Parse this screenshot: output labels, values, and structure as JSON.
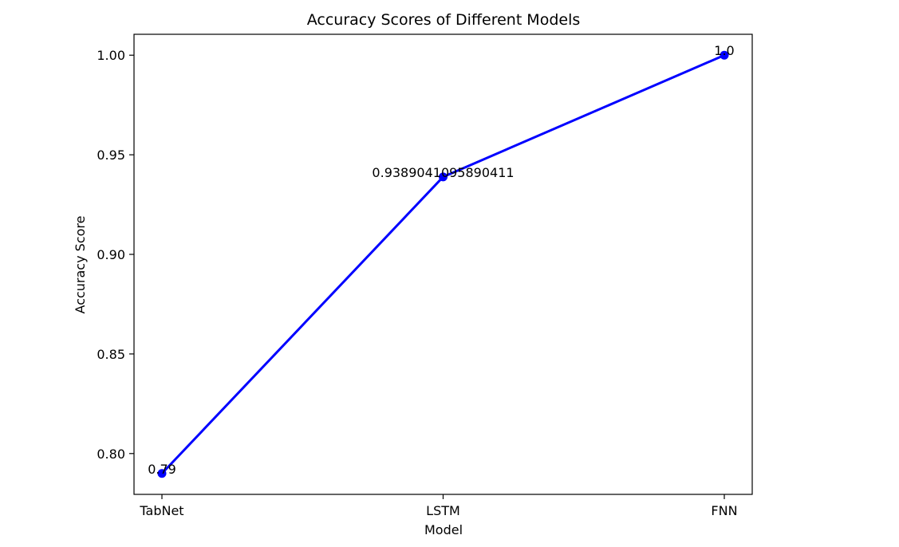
{
  "chart_data": {
    "type": "line",
    "title": "Accuracy Scores of Different Models",
    "xlabel": "Model",
    "ylabel": "Accuracy Score",
    "categories": [
      "TabNet",
      "LSTM",
      "FNN"
    ],
    "values": [
      0.79,
      0.9389041095890411,
      1.0
    ],
    "data_labels": [
      "0.79",
      "0.9389041095890411",
      "1.0"
    ],
    "yticks": [
      0.8,
      0.85,
      0.9,
      0.95,
      1.0
    ],
    "ytick_labels": [
      "0.80",
      "0.85",
      "0.90",
      "0.95",
      "1.00"
    ],
    "ylim": [
      0.7795,
      1.0105
    ],
    "grid": false,
    "line_color": "#0000ff",
    "marker": "circle"
  }
}
